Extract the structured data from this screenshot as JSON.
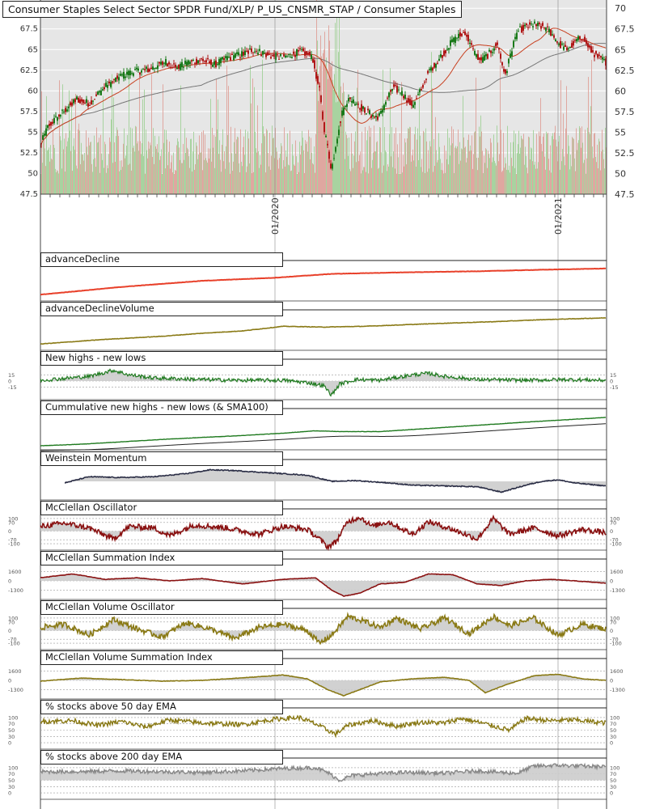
{
  "main_title": "Consumer Staples Select Sector SPDR Fund/XLP/ P_US_CNSMR_STAP / Consumer Staples",
  "colors": {
    "bg_main": "#e6e6e6",
    "bg_panel": "#ffffff",
    "up": "#1a7a1a",
    "down": "#b01818",
    "sma_short": "#c84020",
    "sma_long": "#777777",
    "vol_up": "#a8d3a0",
    "vol_down": "#dfa7a0",
    "ad_line": "#e8402a",
    "olive": "#8a7a16",
    "green": "#1f7a1f",
    "navy": "#2a2d45",
    "maroon": "#8a1212",
    "gray": "#888888",
    "fill": "#cccccc"
  },
  "chart_data": [
    {
      "id": "price",
      "type": "candlestick",
      "title": "Consumer Staples Select Sector SPDR Fund/XLP/ P_US_CNSMR_STAP / Consumer Staples",
      "y_ticks": [
        "70",
        "67.5",
        "65",
        "62.5",
        "60",
        "57.5",
        "55",
        "52.5",
        "50",
        "47.5"
      ],
      "ylim": [
        47.5,
        71
      ],
      "x_ticks": [
        "01/2020",
        "01/2021"
      ],
      "overlays": [
        "sma_short",
        "sma_long",
        "volume"
      ],
      "path_points": [
        [
          0,
          53.5
        ],
        [
          10,
          55.8
        ],
        [
          25,
          57.2
        ],
        [
          45,
          59.0
        ],
        [
          60,
          58.5
        ],
        [
          80,
          60.5
        ],
        [
          100,
          61.8
        ],
        [
          115,
          62.3
        ],
        [
          135,
          62.6
        ],
        [
          155,
          63.5
        ],
        [
          170,
          62.8
        ],
        [
          185,
          63.5
        ],
        [
          200,
          63.8
        ],
        [
          215,
          63.2
        ],
        [
          232,
          64.0
        ],
        [
          252,
          64.5
        ],
        [
          262,
          65.0
        ],
        [
          283,
          64.3
        ],
        [
          300,
          64.0
        ],
        [
          322,
          64.8
        ],
        [
          336,
          64.2
        ],
        [
          345,
          60.0
        ],
        [
          350,
          56.0
        ],
        [
          356,
          52.5
        ],
        [
          360,
          50.5
        ],
        [
          366,
          54.0
        ],
        [
          372,
          57.0
        ],
        [
          380,
          59.0
        ],
        [
          392,
          58.5
        ],
        [
          398,
          57.8
        ],
        [
          405,
          57.4
        ],
        [
          413,
          56.8
        ],
        [
          420,
          57.0
        ],
        [
          426,
          58.5
        ],
        [
          436,
          60.5
        ],
        [
          448,
          59.6
        ],
        [
          460,
          58.2
        ],
        [
          470,
          60.0
        ],
        [
          478,
          62.0
        ],
        [
          490,
          63.5
        ],
        [
          505,
          65.5
        ],
        [
          515,
          66.5
        ],
        [
          525,
          67.2
        ],
        [
          535,
          64.8
        ],
        [
          545,
          63.6
        ],
        [
          555,
          64.5
        ],
        [
          565,
          65.8
        ],
        [
          570,
          63.5
        ],
        [
          575,
          61.9
        ],
        [
          580,
          64.0
        ],
        [
          590,
          67.2
        ],
        [
          600,
          67.8
        ],
        [
          610,
          68.0
        ],
        [
          620,
          67.8
        ],
        [
          630,
          67.2
        ],
        [
          640,
          65.8
        ],
        [
          650,
          65.0
        ],
        [
          660,
          65.8
        ],
        [
          670,
          66.6
        ],
        [
          680,
          65.0
        ],
        [
          690,
          64.0
        ],
        [
          699,
          63.5
        ]
      ]
    },
    {
      "id": "p1",
      "title": "advanceDecline",
      "type": "line",
      "path_points": [
        [
          0,
          -0.8
        ],
        [
          100,
          -0.3
        ],
        [
          200,
          0.1
        ],
        [
          290,
          0.3
        ],
        [
          360,
          0.55
        ],
        [
          450,
          0.65
        ],
        [
          540,
          0.72
        ],
        [
          620,
          0.82
        ],
        [
          699,
          0.9
        ]
      ]
    },
    {
      "id": "p2",
      "title": "advanceDeclineVolume",
      "type": "line",
      "path_points": [
        [
          0,
          -0.8
        ],
        [
          80,
          -0.5
        ],
        [
          150,
          -0.3
        ],
        [
          200,
          -0.1
        ],
        [
          250,
          0.05
        ],
        [
          300,
          0.35
        ],
        [
          350,
          0.3
        ],
        [
          400,
          0.35
        ],
        [
          450,
          0.45
        ],
        [
          500,
          0.55
        ],
        [
          560,
          0.65
        ],
        [
          620,
          0.78
        ],
        [
          699,
          0.9
        ]
      ]
    },
    {
      "id": "p3",
      "title": "New highs - new lows",
      "type": "area",
      "y_ticks_left": [
        "15",
        "0",
        "-15"
      ],
      "y_ticks_right": [
        "15",
        "0",
        "-15"
      ],
      "path_points": [
        [
          0,
          0.05
        ],
        [
          60,
          0.3
        ],
        [
          90,
          0.7
        ],
        [
          110,
          0.4
        ],
        [
          140,
          0.2
        ],
        [
          200,
          0.1
        ],
        [
          240,
          0.05
        ],
        [
          300,
          0.05
        ],
        [
          330,
          -0.1
        ],
        [
          350,
          -0.3
        ],
        [
          360,
          -0.9
        ],
        [
          370,
          -0.2
        ],
        [
          390,
          0.1
        ],
        [
          420,
          0.05
        ],
        [
          460,
          0.4
        ],
        [
          480,
          0.5
        ],
        [
          500,
          0.3
        ],
        [
          540,
          0.1
        ],
        [
          600,
          0.05
        ],
        [
          650,
          0.1
        ],
        [
          699,
          0.05
        ]
      ]
    },
    {
      "id": "p4",
      "title": "Cummulative new highs - new lows (& SMA100)",
      "type": "line",
      "path_points": [
        [
          0,
          -0.95
        ],
        [
          50,
          -0.85
        ],
        [
          100,
          -0.7
        ],
        [
          150,
          -0.55
        ],
        [
          200,
          -0.42
        ],
        [
          250,
          -0.3
        ],
        [
          300,
          -0.15
        ],
        [
          340,
          0.0
        ],
        [
          370,
          -0.05
        ],
        [
          420,
          -0.05
        ],
        [
          480,
          0.15
        ],
        [
          540,
          0.35
        ],
        [
          600,
          0.55
        ],
        [
          650,
          0.7
        ],
        [
          699,
          0.85
        ]
      ]
    },
    {
      "id": "p5",
      "title": "Weinstein Momentum",
      "type": "area",
      "path_points": [
        [
          30,
          -0.1
        ],
        [
          60,
          0.3
        ],
        [
          100,
          0.25
        ],
        [
          140,
          0.3
        ],
        [
          180,
          0.5
        ],
        [
          210,
          0.75
        ],
        [
          240,
          0.7
        ],
        [
          270,
          0.6
        ],
        [
          300,
          0.5
        ],
        [
          330,
          0.4
        ],
        [
          360,
          0.0
        ],
        [
          390,
          0.05
        ],
        [
          430,
          -0.1
        ],
        [
          460,
          -0.25
        ],
        [
          500,
          -0.3
        ],
        [
          540,
          -0.35
        ],
        [
          570,
          -0.7
        ],
        [
          600,
          -0.25
        ],
        [
          620,
          0.0
        ],
        [
          640,
          0.1
        ],
        [
          660,
          -0.1
        ],
        [
          699,
          -0.3
        ]
      ]
    },
    {
      "id": "p6",
      "title": "McClellan Oscillator",
      "type": "area",
      "y_ticks_left": [
        "100",
        "70",
        "0",
        "-70",
        "-100"
      ],
      "y_ticks_right": [
        "100",
        "70",
        "0",
        "-70",
        "-100"
      ],
      "path_points": [
        [
          0,
          0.3
        ],
        [
          30,
          0.5
        ],
        [
          60,
          0.2
        ],
        [
          90,
          -0.5
        ],
        [
          110,
          0.3
        ],
        [
          140,
          0.2
        ],
        [
          160,
          -0.3
        ],
        [
          190,
          0.4
        ],
        [
          230,
          0.2
        ],
        [
          270,
          -0.2
        ],
        [
          300,
          0.3
        ],
        [
          330,
          0.1
        ],
        [
          345,
          -0.5
        ],
        [
          355,
          -1.0
        ],
        [
          365,
          -0.7
        ],
        [
          380,
          0.6
        ],
        [
          395,
          0.9
        ],
        [
          410,
          0.3
        ],
        [
          430,
          0.6
        ],
        [
          460,
          -0.2
        ],
        [
          480,
          0.6
        ],
        [
          510,
          0.1
        ],
        [
          540,
          -0.5
        ],
        [
          560,
          0.8
        ],
        [
          580,
          -0.2
        ],
        [
          610,
          0.2
        ],
        [
          640,
          -0.3
        ],
        [
          670,
          0.1
        ],
        [
          699,
          -0.1
        ]
      ]
    },
    {
      "id": "p7",
      "title": "McClellan Summation Index",
      "type": "area",
      "y_ticks_left": [
        "1600",
        "0",
        "-1300"
      ],
      "y_ticks_right": [
        "1600",
        "0",
        "-1300"
      ],
      "path_points": [
        [
          0,
          0.2
        ],
        [
          40,
          0.45
        ],
        [
          80,
          0.1
        ],
        [
          120,
          0.2
        ],
        [
          160,
          0.0
        ],
        [
          200,
          0.15
        ],
        [
          250,
          -0.2
        ],
        [
          300,
          0.1
        ],
        [
          340,
          0.2
        ],
        [
          360,
          -0.6
        ],
        [
          375,
          -1.0
        ],
        [
          395,
          -0.8
        ],
        [
          420,
          -0.2
        ],
        [
          450,
          -0.1
        ],
        [
          480,
          0.45
        ],
        [
          510,
          0.4
        ],
        [
          540,
          -0.2
        ],
        [
          570,
          -0.3
        ],
        [
          600,
          0.0
        ],
        [
          630,
          0.1
        ],
        [
          660,
          0.0
        ],
        [
          699,
          -0.15
        ]
      ]
    },
    {
      "id": "p8",
      "title": "McClellan Volume Oscillator",
      "type": "area",
      "y_ticks_left": [
        "100",
        "70",
        "0",
        "-70",
        "-100"
      ],
      "y_ticks_right": [
        "100",
        "70",
        "0",
        "-70",
        "-100"
      ],
      "path_points": [
        [
          0,
          0.2
        ],
        [
          30,
          0.4
        ],
        [
          60,
          -0.3
        ],
        [
          90,
          0.7
        ],
        [
          120,
          0.1
        ],
        [
          150,
          -0.4
        ],
        [
          180,
          0.5
        ],
        [
          210,
          0.1
        ],
        [
          240,
          -0.5
        ],
        [
          270,
          0.2
        ],
        [
          300,
          0.4
        ],
        [
          330,
          0.0
        ],
        [
          345,
          -0.8
        ],
        [
          360,
          -0.3
        ],
        [
          380,
          0.9
        ],
        [
          400,
          0.6
        ],
        [
          420,
          0.2
        ],
        [
          440,
          0.8
        ],
        [
          470,
          0.1
        ],
        [
          500,
          0.8
        ],
        [
          530,
          -0.2
        ],
        [
          560,
          0.9
        ],
        [
          580,
          0.3
        ],
        [
          610,
          0.8
        ],
        [
          640,
          -0.3
        ],
        [
          670,
          0.4
        ],
        [
          699,
          0.1
        ]
      ]
    },
    {
      "id": "p9",
      "title": "McClellan Volume Summation Index",
      "type": "area",
      "y_ticks_left": [
        "1600",
        "0",
        "-1300"
      ],
      "y_ticks_right": [
        "1600",
        "0",
        "-1300"
      ],
      "path_points": [
        [
          0,
          -0.05
        ],
        [
          50,
          0.15
        ],
        [
          100,
          0.05
        ],
        [
          150,
          -0.05
        ],
        [
          200,
          0.0
        ],
        [
          260,
          0.2
        ],
        [
          300,
          0.35
        ],
        [
          330,
          0.1
        ],
        [
          355,
          -0.6
        ],
        [
          375,
          -1.0
        ],
        [
          395,
          -0.6
        ],
        [
          420,
          -0.1
        ],
        [
          460,
          0.1
        ],
        [
          500,
          0.2
        ],
        [
          530,
          0.0
        ],
        [
          550,
          -0.8
        ],
        [
          575,
          -0.3
        ],
        [
          610,
          0.3
        ],
        [
          640,
          0.4
        ],
        [
          670,
          0.1
        ],
        [
          699,
          0.0
        ]
      ]
    },
    {
      "id": "p10",
      "title": "% stocks above 50 day EMA",
      "type": "line",
      "y_ticks_left": [
        "100",
        "70",
        "50",
        "30",
        "0"
      ],
      "y_ticks_right": [
        "100",
        "70",
        "50",
        "30",
        "0"
      ],
      "path_points": [
        [
          0,
          0.55
        ],
        [
          40,
          0.6
        ],
        [
          70,
          0.3
        ],
        [
          100,
          0.55
        ],
        [
          130,
          0.2
        ],
        [
          160,
          0.65
        ],
        [
          200,
          0.45
        ],
        [
          250,
          0.35
        ],
        [
          290,
          0.7
        ],
        [
          320,
          0.8
        ],
        [
          340,
          0.4
        ],
        [
          355,
          0.0
        ],
        [
          365,
          -0.25
        ],
        [
          380,
          0.3
        ],
        [
          410,
          0.6
        ],
        [
          440,
          0.25
        ],
        [
          470,
          0.5
        ],
        [
          500,
          0.45
        ],
        [
          520,
          0.75
        ],
        [
          550,
          0.4
        ],
        [
          580,
          0.0
        ],
        [
          600,
          0.75
        ],
        [
          630,
          0.6
        ],
        [
          660,
          0.65
        ],
        [
          699,
          0.45
        ]
      ]
    },
    {
      "id": "p11",
      "title": "% stocks above 200 day EMA",
      "type": "area",
      "y_ticks_left": [
        "100",
        "70",
        "50",
        "30",
        "0"
      ],
      "y_ticks_right": [
        "100",
        "70",
        "50",
        "30",
        "0"
      ],
      "path_points": [
        [
          0,
          0.55
        ],
        [
          50,
          0.55
        ],
        [
          100,
          0.6
        ],
        [
          150,
          0.55
        ],
        [
          200,
          0.5
        ],
        [
          250,
          0.6
        ],
        [
          300,
          0.75
        ],
        [
          340,
          0.8
        ],
        [
          355,
          0.5
        ],
        [
          370,
          0.0
        ],
        [
          385,
          0.3
        ],
        [
          410,
          0.4
        ],
        [
          450,
          0.5
        ],
        [
          500,
          0.45
        ],
        [
          540,
          0.6
        ],
        [
          570,
          0.5
        ],
        [
          590,
          0.45
        ],
        [
          610,
          0.9
        ],
        [
          640,
          0.95
        ],
        [
          670,
          0.9
        ],
        [
          699,
          0.85
        ]
      ]
    }
  ]
}
